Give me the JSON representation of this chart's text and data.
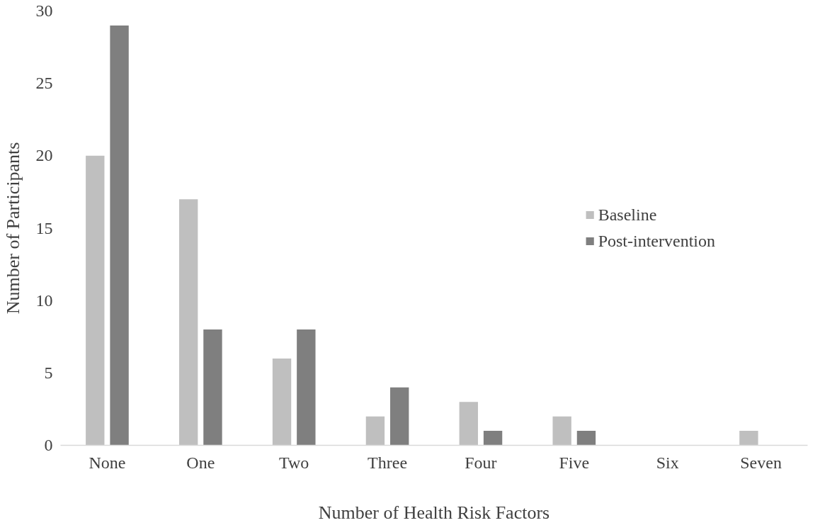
{
  "chart_data": {
    "type": "bar",
    "xlabel": "Number of Health Risk Factors",
    "ylabel": "Number of Participants",
    "categories": [
      "None",
      "One",
      "Two",
      "Three",
      "Four",
      "Five",
      "Six",
      "Seven"
    ],
    "series": [
      {
        "name": "Baseline",
        "color": "#bfbfbf",
        "values": [
          20,
          17,
          6,
          2,
          3,
          2,
          0,
          1
        ]
      },
      {
        "name": "Post-intervention",
        "color": "#7f7f7f",
        "values": [
          29,
          8,
          8,
          4,
          1,
          1,
          0,
          0
        ]
      }
    ],
    "ylim": [
      0,
      30
    ],
    "yticks": [
      0,
      5,
      10,
      15,
      20,
      25,
      30
    ],
    "grid": false,
    "legend": "right"
  }
}
